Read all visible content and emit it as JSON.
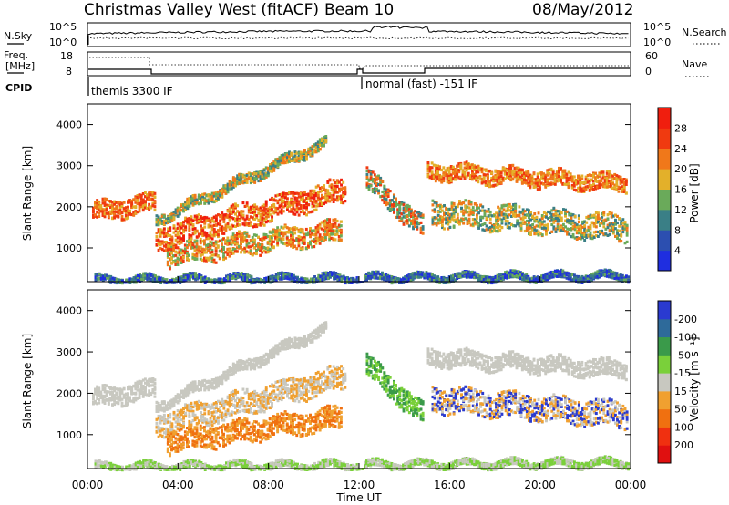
{
  "header": {
    "station": "Christmas Valley West (fitACF)",
    "beam": "Beam 10",
    "date": "08/May/2012"
  },
  "panels": {
    "nsky_label": "N.Sky",
    "nsearch_label": "N.Search",
    "freq_label_1": "Freq.",
    "freq_label_2": "[MHz]",
    "nave_label": "Nave",
    "cpid_label": "CPID",
    "nsky_ticks": [
      "10^5",
      "10^0"
    ],
    "nsearch_ticks": [
      "10^5",
      "10^0"
    ],
    "freq_ticks": [
      "18",
      "8"
    ],
    "nave_ticks": [
      "60",
      "0"
    ],
    "cpid_1": "themis 3300 IF",
    "cpid_2": "normal (fast) -151 IF"
  },
  "chart_data": [
    {
      "type": "heatmap",
      "name": "power",
      "ylabel": "Slant Range [km]",
      "yticks": [
        "1000",
        "2000",
        "3000",
        "4000"
      ],
      "ylim": [
        180,
        4500
      ],
      "xlim": [
        0,
        24
      ],
      "colorbar_label": "Power [dB]",
      "colorbar_ticks": [
        "4",
        "8",
        "12",
        "16",
        "20",
        "24",
        "28"
      ],
      "colors": [
        "#1f2ee0",
        "#2c4fb0",
        "#3a7f86",
        "#6aaa5a",
        "#e3b02a",
        "#f0781a",
        "#f03a10",
        "#f01e0e"
      ]
    },
    {
      "type": "heatmap",
      "name": "velocity",
      "ylabel": "Slant Range [km]",
      "yticks": [
        "1000",
        "2000",
        "3000",
        "4000"
      ],
      "ylim": [
        180,
        4500
      ],
      "xlim": [
        0,
        24
      ],
      "colorbar_label": "Velocity [m s⁻¹]",
      "colorbar_ticks": [
        "200",
        "100",
        "50",
        "15",
        "-15",
        "-50",
        "-100",
        "-200"
      ],
      "colors": [
        "#2a3ad0",
        "#2e6a9a",
        "#3a9a4a",
        "#7ad03a",
        "#c8c8c0",
        "#f0a030",
        "#f07010",
        "#f03010",
        "#e01010"
      ],
      "xlabel": "Time UT",
      "xticks": [
        "00:00",
        "04:00",
        "08:00",
        "12:00",
        "16:00",
        "20:00",
        "00:00"
      ]
    }
  ]
}
